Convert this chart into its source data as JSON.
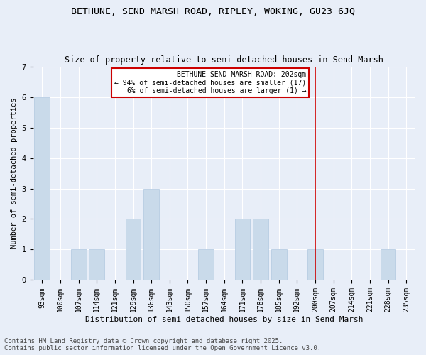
{
  "title": "BETHUNE, SEND MARSH ROAD, RIPLEY, WOKING, GU23 6JQ",
  "subtitle": "Size of property relative to semi-detached houses in Send Marsh",
  "xlabel": "Distribution of semi-detached houses by size in Send Marsh",
  "ylabel": "Number of semi-detached properties",
  "categories": [
    "93sqm",
    "100sqm",
    "107sqm",
    "114sqm",
    "121sqm",
    "129sqm",
    "136sqm",
    "143sqm",
    "150sqm",
    "157sqm",
    "164sqm",
    "171sqm",
    "178sqm",
    "185sqm",
    "192sqm",
    "200sqm",
    "207sqm",
    "214sqm",
    "221sqm",
    "228sqm",
    "235sqm"
  ],
  "values": [
    6,
    0,
    1,
    1,
    0,
    2,
    3,
    0,
    0,
    1,
    0,
    2,
    2,
    1,
    0,
    1,
    0,
    0,
    0,
    1,
    0
  ],
  "bar_color": "#c9daea",
  "bar_edge_color": "#b0c8e0",
  "vline_x_index": 15,
  "vline_color": "#cc0000",
  "annotation_text": "BETHUNE SEND MARSH ROAD: 202sqm\n← 94% of semi-detached houses are smaller (17)\n6% of semi-detached houses are larger (1) →",
  "annotation_box_color": "#ffffff",
  "annotation_box_edge": "#cc0000",
  "ylim": [
    0,
    7
  ],
  "yticks": [
    0,
    1,
    2,
    3,
    4,
    5,
    6,
    7
  ],
  "footer": "Contains HM Land Registry data © Crown copyright and database right 2025.\nContains public sector information licensed under the Open Government Licence v3.0.",
  "background_color": "#e8eef8",
  "grid_color": "#ffffff",
  "title_fontsize": 9.5,
  "subtitle_fontsize": 8.5,
  "xlabel_fontsize": 8,
  "ylabel_fontsize": 7.5,
  "tick_fontsize": 7,
  "annotation_fontsize": 7,
  "footer_fontsize": 6.5
}
